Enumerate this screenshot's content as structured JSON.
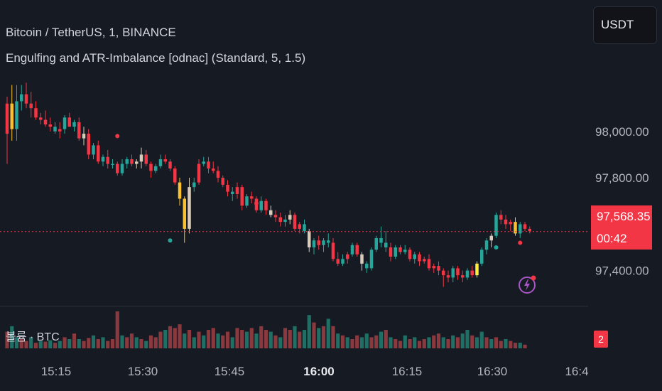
{
  "header": {
    "symbol_line": "Bitcoin / TetherUS, 1, BINANCE",
    "indicator_line": "Engulfing and ATR-Imbalance [odnac] (Standard, 5, 1.5)"
  },
  "currency_button": {
    "label": "USDT"
  },
  "price_axis": {
    "labels": [
      "98,000.00",
      "97,800.00",
      "97,400.00"
    ],
    "values": [
      98000,
      97800,
      97400
    ],
    "last_price_label": "97,568.35",
    "last_price": 97568.35,
    "countdown": "00:42"
  },
  "time_axis": {
    "labels": [
      "15:15",
      "15:30",
      "15:45",
      "16:00",
      "16:15",
      "16:30",
      "16:4"
    ],
    "bold_index": 3
  },
  "volume_pane": {
    "label": "볼륨 · BTC",
    "badge": "2"
  },
  "colors": {
    "background": "#161a23",
    "up": "#26a69a",
    "down": "#f23645",
    "bullish_engulf": "#d8ccb9",
    "bearish_highlight": "#fbc02d",
    "accent_yellow": "#ffeb3b",
    "vol_up": "#1f6f65",
    "vol_down": "#8a3a3f",
    "alert_icon": "#a855c7"
  },
  "chart_data": {
    "type": "candlestick",
    "ylim": [
      97310,
      98260
    ],
    "candles": [
      [
        97990,
        98150,
        97860,
        98120,
        "down"
      ],
      [
        98120,
        98200,
        97960,
        98010,
        "hl"
      ],
      [
        98010,
        98200,
        97960,
        98130,
        "up"
      ],
      [
        98130,
        98200,
        98090,
        98160,
        "up"
      ],
      [
        98160,
        98210,
        98100,
        98120,
        "down"
      ],
      [
        98120,
        98170,
        98060,
        98100,
        "down"
      ],
      [
        98100,
        98130,
        98050,
        98060,
        "down"
      ],
      [
        98060,
        98080,
        98030,
        98050,
        "down"
      ],
      [
        98050,
        98090,
        98020,
        98030,
        "down"
      ],
      [
        98030,
        98060,
        98000,
        98020,
        "down"
      ],
      [
        98020,
        98040,
        97990,
        98000,
        "up"
      ],
      [
        98000,
        98040,
        97970,
        98010,
        "down"
      ],
      [
        98010,
        98070,
        97990,
        98060,
        "up"
      ],
      [
        98060,
        98080,
        98020,
        98020,
        "down"
      ],
      [
        98020,
        98050,
        98000,
        98040,
        "up"
      ],
      [
        98040,
        98060,
        97960,
        97970,
        "down"
      ],
      [
        97970,
        98020,
        97940,
        97990,
        "en"
      ],
      [
        97990,
        98010,
        97880,
        97900,
        "down"
      ],
      [
        97900,
        97950,
        97880,
        97940,
        "up"
      ],
      [
        97940,
        97960,
        97860,
        97870,
        "down"
      ],
      [
        97870,
        97900,
        97850,
        97890,
        "up"
      ],
      [
        97890,
        97920,
        97840,
        97860,
        "down"
      ],
      [
        97860,
        97880,
        97840,
        97860,
        "up"
      ],
      [
        97860,
        97870,
        97810,
        97820,
        "down"
      ],
      [
        97820,
        97880,
        97810,
        97860,
        "up"
      ],
      [
        97860,
        97890,
        97840,
        97880,
        "up"
      ],
      [
        97880,
        97900,
        97850,
        97860,
        "down"
      ],
      [
        97860,
        97880,
        97840,
        97870,
        "en"
      ],
      [
        97870,
        97930,
        97840,
        97900,
        "en"
      ],
      [
        97900,
        97920,
        97850,
        97860,
        "down"
      ],
      [
        97860,
        97870,
        97800,
        97830,
        "down"
      ],
      [
        97830,
        97860,
        97820,
        97850,
        "up"
      ],
      [
        97850,
        97900,
        97840,
        97880,
        "up"
      ],
      [
        97880,
        97900,
        97860,
        97870,
        "down"
      ],
      [
        97870,
        97880,
        97830,
        97840,
        "down"
      ],
      [
        97840,
        97850,
        97770,
        97780,
        "down"
      ],
      [
        97780,
        97800,
        97680,
        97710,
        "hl"
      ],
      [
        97710,
        97720,
        97520,
        97580,
        "hl"
      ],
      [
        97580,
        97800,
        97560,
        97760,
        "en"
      ],
      [
        97760,
        97800,
        97740,
        97780,
        "up"
      ],
      [
        97780,
        97880,
        97770,
        97860,
        "down"
      ],
      [
        97860,
        97890,
        97850,
        97870,
        "up"
      ],
      [
        97870,
        97890,
        97820,
        97840,
        "down"
      ],
      [
        97840,
        97870,
        97820,
        97830,
        "down"
      ],
      [
        97830,
        97850,
        97780,
        97800,
        "down"
      ],
      [
        97800,
        97810,
        97760,
        97770,
        "down"
      ],
      [
        97770,
        97790,
        97720,
        97740,
        "down"
      ],
      [
        97740,
        97760,
        97700,
        97730,
        "up"
      ],
      [
        97730,
        97780,
        97710,
        97760,
        "down"
      ],
      [
        97760,
        97770,
        97660,
        97680,
        "down"
      ],
      [
        97680,
        97730,
        97670,
        97720,
        "up"
      ],
      [
        97720,
        97740,
        97690,
        97710,
        "down"
      ],
      [
        97710,
        97720,
        97650,
        97660,
        "down"
      ],
      [
        97660,
        97720,
        97650,
        97700,
        "up"
      ],
      [
        97700,
        97710,
        97640,
        97660,
        "down"
      ],
      [
        97660,
        97680,
        97630,
        97640,
        "en"
      ],
      [
        97640,
        97660,
        97610,
        97630,
        "down"
      ],
      [
        97630,
        97650,
        97590,
        97610,
        "down"
      ],
      [
        97610,
        97640,
        97590,
        97620,
        "up"
      ],
      [
        97620,
        97660,
        97600,
        97640,
        "en"
      ],
      [
        97640,
        97650,
        97570,
        97580,
        "down"
      ],
      [
        97580,
        97610,
        97560,
        97600,
        "down"
      ],
      [
        97600,
        97620,
        97560,
        97570,
        "up"
      ],
      [
        97570,
        97580,
        97480,
        97500,
        "en"
      ],
      [
        97500,
        97540,
        97470,
        97530,
        "up"
      ],
      [
        97530,
        97550,
        97490,
        97510,
        "down"
      ],
      [
        97510,
        97540,
        97480,
        97530,
        "up"
      ],
      [
        97530,
        97560,
        97500,
        97520,
        "up"
      ],
      [
        97520,
        97540,
        97440,
        97450,
        "down"
      ],
      [
        97450,
        97480,
        97420,
        97430,
        "down"
      ],
      [
        97430,
        97470,
        97420,
        97450,
        "up"
      ],
      [
        97450,
        97480,
        97430,
        97470,
        "down"
      ],
      [
        97470,
        97520,
        97460,
        97510,
        "up"
      ],
      [
        97510,
        97520,
        97460,
        97470,
        "down"
      ],
      [
        97470,
        97480,
        97400,
        97430,
        "en"
      ],
      [
        97430,
        97440,
        97390,
        97410,
        "up"
      ],
      [
        97410,
        97500,
        97400,
        97490,
        "up"
      ],
      [
        97490,
        97550,
        97480,
        97540,
        "up"
      ],
      [
        97540,
        97590,
        97500,
        97520,
        "up"
      ],
      [
        97520,
        97570,
        97480,
        97500,
        "up"
      ],
      [
        97500,
        97520,
        97440,
        97460,
        "down"
      ],
      [
        97460,
        97510,
        97450,
        97500,
        "up"
      ],
      [
        97500,
        97510,
        97470,
        97480,
        "down"
      ],
      [
        97480,
        97510,
        97470,
        97490,
        "up"
      ],
      [
        97490,
        97500,
        97440,
        97450,
        "down"
      ],
      [
        97450,
        97480,
        97430,
        97470,
        "up"
      ],
      [
        97470,
        97480,
        97420,
        97440,
        "down"
      ],
      [
        97440,
        97460,
        97430,
        97450,
        "down"
      ],
      [
        97450,
        97470,
        97400,
        97410,
        "down"
      ],
      [
        97410,
        97430,
        97390,
        97420,
        "down"
      ],
      [
        97420,
        97440,
        97380,
        97400,
        "down"
      ],
      [
        97400,
        97410,
        97330,
        97380,
        "down"
      ],
      [
        97380,
        97400,
        97350,
        97370,
        "down"
      ],
      [
        97370,
        97420,
        97350,
        97410,
        "up"
      ],
      [
        97410,
        97420,
        97360,
        97380,
        "down"
      ],
      [
        97380,
        97400,
        97350,
        97370,
        "down"
      ],
      [
        97370,
        97410,
        97360,
        97400,
        "up"
      ],
      [
        97400,
        97420,
        97370,
        97380,
        "down"
      ],
      [
        97380,
        97440,
        97370,
        97430,
        "yel"
      ],
      [
        97430,
        97500,
        97420,
        97490,
        "up"
      ],
      [
        97490,
        97540,
        97470,
        97530,
        "up"
      ],
      [
        97530,
        97560,
        97500,
        97550,
        "en"
      ],
      [
        97550,
        97650,
        97540,
        97640,
        "up"
      ],
      [
        97640,
        97660,
        97600,
        97620,
        "down"
      ],
      [
        97620,
        97640,
        97580,
        97600,
        "down"
      ],
      [
        97600,
        97620,
        97570,
        97610,
        "down"
      ],
      [
        97610,
        97630,
        97550,
        97560,
        "hl"
      ],
      [
        97560,
        97610,
        97540,
        97600,
        "up"
      ],
      [
        97600,
        97610,
        97570,
        97580,
        "down"
      ],
      [
        97580,
        97590,
        97560,
        97570,
        "down"
      ]
    ],
    "markers": [
      [
        23,
        97980,
        "down"
      ],
      [
        52,
        97690,
        "down"
      ],
      [
        34,
        97530,
        "up"
      ],
      [
        102,
        97500,
        "up"
      ],
      [
        107,
        97520,
        "down"
      ]
    ],
    "volumes": [
      [
        0.45,
        "d"
      ],
      [
        0.6,
        "u"
      ],
      [
        0.3,
        "u"
      ],
      [
        0.25,
        "d"
      ],
      [
        0.2,
        "d"
      ],
      [
        0.3,
        "u"
      ],
      [
        0.15,
        "d"
      ],
      [
        0.2,
        "u"
      ],
      [
        0.18,
        "d"
      ],
      [
        0.22,
        "u"
      ],
      [
        0.15,
        "d"
      ],
      [
        0.2,
        "u"
      ],
      [
        0.3,
        "d"
      ],
      [
        0.25,
        "u"
      ],
      [
        0.4,
        "d"
      ],
      [
        0.25,
        "u"
      ],
      [
        0.2,
        "d"
      ],
      [
        0.28,
        "d"
      ],
      [
        0.35,
        "u"
      ],
      [
        0.25,
        "d"
      ],
      [
        0.3,
        "u"
      ],
      [
        0.2,
        "d"
      ],
      [
        0.25,
        "d"
      ],
      [
        1.0,
        "d"
      ],
      [
        0.35,
        "u"
      ],
      [
        0.3,
        "d"
      ],
      [
        0.4,
        "d"
      ],
      [
        0.3,
        "u"
      ],
      [
        0.25,
        "d"
      ],
      [
        0.2,
        "u"
      ],
      [
        0.35,
        "d"
      ],
      [
        0.3,
        "d"
      ],
      [
        0.45,
        "d"
      ],
      [
        0.5,
        "u"
      ],
      [
        0.6,
        "d"
      ],
      [
        0.55,
        "d"
      ],
      [
        0.65,
        "d"
      ],
      [
        0.4,
        "u"
      ],
      [
        0.5,
        "d"
      ],
      [
        0.3,
        "u"
      ],
      [
        0.45,
        "d"
      ],
      [
        0.35,
        "u"
      ],
      [
        0.5,
        "d"
      ],
      [
        0.55,
        "d"
      ],
      [
        0.4,
        "u"
      ],
      [
        0.35,
        "d"
      ],
      [
        0.45,
        "d"
      ],
      [
        0.3,
        "u"
      ],
      [
        0.55,
        "d"
      ],
      [
        0.5,
        "d"
      ],
      [
        0.45,
        "u"
      ],
      [
        0.55,
        "d"
      ],
      [
        0.4,
        "u"
      ],
      [
        0.6,
        "d"
      ],
      [
        0.5,
        "d"
      ],
      [
        0.45,
        "u"
      ],
      [
        0.35,
        "d"
      ],
      [
        0.3,
        "u"
      ],
      [
        0.55,
        "d"
      ],
      [
        0.5,
        "d"
      ],
      [
        0.6,
        "u"
      ],
      [
        0.45,
        "d"
      ],
      [
        0.5,
        "u"
      ],
      [
        0.9,
        "u"
      ],
      [
        0.7,
        "d"
      ],
      [
        0.55,
        "u"
      ],
      [
        0.6,
        "d"
      ],
      [
        0.8,
        "u"
      ],
      [
        0.6,
        "d"
      ],
      [
        0.4,
        "u"
      ],
      [
        0.35,
        "d"
      ],
      [
        0.3,
        "u"
      ],
      [
        0.25,
        "d"
      ],
      [
        0.35,
        "d"
      ],
      [
        0.3,
        "u"
      ],
      [
        0.4,
        "u"
      ],
      [
        0.3,
        "d"
      ],
      [
        0.35,
        "d"
      ],
      [
        0.45,
        "u"
      ],
      [
        0.5,
        "d"
      ],
      [
        0.3,
        "u"
      ],
      [
        0.25,
        "d"
      ],
      [
        0.2,
        "d"
      ],
      [
        0.35,
        "u"
      ],
      [
        0.25,
        "d"
      ],
      [
        0.3,
        "u"
      ],
      [
        0.2,
        "d"
      ],
      [
        0.25,
        "d"
      ],
      [
        0.3,
        "u"
      ],
      [
        0.35,
        "d"
      ],
      [
        0.4,
        "d"
      ],
      [
        0.3,
        "u"
      ],
      [
        0.25,
        "d"
      ],
      [
        0.35,
        "u"
      ],
      [
        0.3,
        "d"
      ],
      [
        0.4,
        "u"
      ],
      [
        0.5,
        "u"
      ],
      [
        0.35,
        "d"
      ],
      [
        0.3,
        "u"
      ],
      [
        0.45,
        "u"
      ],
      [
        0.3,
        "d"
      ],
      [
        0.25,
        "u"
      ],
      [
        0.3,
        "d"
      ],
      [
        0.2,
        "d"
      ],
      [
        0.25,
        "u"
      ],
      [
        0.2,
        "d"
      ],
      [
        0.15,
        "d"
      ],
      [
        0.15,
        "u"
      ],
      [
        0.1,
        "d"
      ]
    ]
  }
}
